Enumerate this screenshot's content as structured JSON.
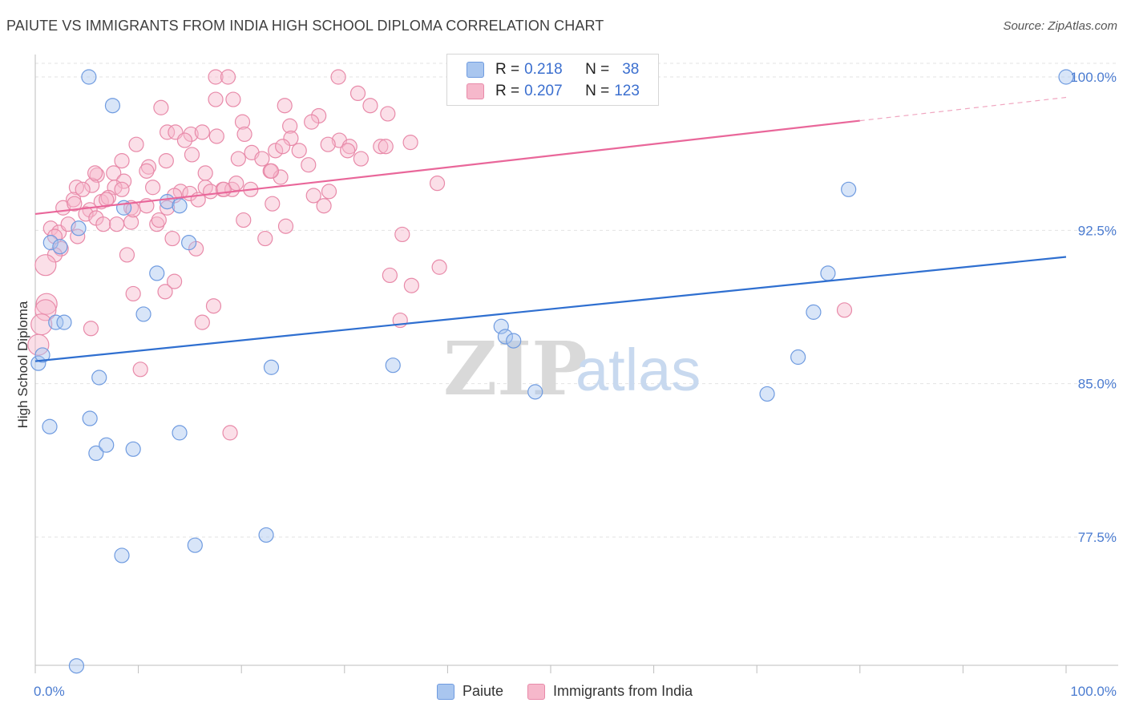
{
  "title": "PAIUTE VS IMMIGRANTS FROM INDIA HIGH SCHOOL DIPLOMA CORRELATION CHART",
  "source": "Source: ZipAtlas.com",
  "watermark": {
    "zip": "ZIP",
    "atlas": "atlas"
  },
  "legend": {
    "rows": [
      {
        "r_label": "R =",
        "r_value": "0.218",
        "n_label": "N =",
        "n_value": "38",
        "color": "#a9c6ef",
        "border": "#6f9be0"
      },
      {
        "r_label": "R =",
        "r_value": "0.207",
        "n_label": "N =",
        "n_value": "123",
        "color": "#f6b8cb",
        "border": "#e88aa9"
      }
    ]
  },
  "bottom_legend": [
    {
      "label": "Paiute",
      "color": "#a9c6ef",
      "border": "#6f9be0"
    },
    {
      "label": "Immigrants from India",
      "color": "#f6b8cb",
      "border": "#e88aa9"
    }
  ],
  "chart_data": {
    "type": "scatter",
    "title": "PAIUTE VS IMMIGRANTS FROM INDIA HIGH SCHOOL DIPLOMA CORRELATION CHART",
    "xlabel": "",
    "ylabel": "High School Diploma",
    "xlim": [
      0,
      100
    ],
    "ylim": [
      71.5,
      101.2
    ],
    "x_tick_labels": [
      "0.0%",
      "100.0%"
    ],
    "y_ticks": [
      77.5,
      85.0,
      92.5,
      100.0
    ],
    "y_tick_labels": [
      "77.5%",
      "85.0%",
      "92.5%",
      "100.0%"
    ],
    "grid": true,
    "series": [
      {
        "name": "Paiute",
        "color": "#6f9be0",
        "fill": "#a9c6ef",
        "trend": {
          "x0": 0,
          "y0": 86.1,
          "x1": 100,
          "y1": 91.2,
          "dashed_from": null
        },
        "points": [
          [
            5.2,
            100.0
          ],
          [
            7.5,
            98.6
          ],
          [
            100.0,
            100.0
          ],
          [
            0.3,
            86.0
          ],
          [
            0.7,
            86.4
          ],
          [
            2.0,
            88.0
          ],
          [
            2.8,
            88.0
          ],
          [
            1.5,
            91.9
          ],
          [
            2.4,
            91.7
          ],
          [
            4.2,
            92.6
          ],
          [
            8.6,
            93.6
          ],
          [
            12.8,
            93.9
          ],
          [
            14.0,
            93.7
          ],
          [
            14.9,
            91.9
          ],
          [
            11.8,
            90.4
          ],
          [
            10.5,
            88.4
          ],
          [
            6.2,
            85.3
          ],
          [
            22.9,
            85.8
          ],
          [
            34.7,
            85.9
          ],
          [
            1.4,
            82.9
          ],
          [
            5.3,
            83.3
          ],
          [
            5.9,
            81.6
          ],
          [
            6.9,
            82.0
          ],
          [
            9.5,
            81.8
          ],
          [
            14.0,
            82.6
          ],
          [
            8.4,
            76.6
          ],
          [
            15.5,
            77.1
          ],
          [
            22.4,
            77.6
          ],
          [
            4.0,
            71.2
          ],
          [
            45.2,
            87.8
          ],
          [
            45.6,
            87.3
          ],
          [
            46.4,
            87.1
          ],
          [
            48.5,
            84.6
          ],
          [
            71.0,
            84.5
          ],
          [
            74.0,
            86.3
          ],
          [
            75.5,
            88.5
          ],
          [
            76.9,
            90.4
          ],
          [
            78.9,
            94.5
          ]
        ]
      },
      {
        "name": "Immigrants from India",
        "color": "#e88aa9",
        "fill": "#f6b8cb",
        "trend": {
          "x0": 0,
          "y0": 93.3,
          "x1": 100,
          "y1": 99.0,
          "dashed_from": 80
        },
        "points": [
          [
            17.5,
            100.0
          ],
          [
            18.7,
            100.0
          ],
          [
            29.4,
            100.0
          ],
          [
            17.5,
            98.9
          ],
          [
            19.2,
            98.9
          ],
          [
            24.2,
            98.6
          ],
          [
            31.3,
            99.2
          ],
          [
            32.5,
            98.6
          ],
          [
            34.2,
            98.2
          ],
          [
            27.5,
            98.1
          ],
          [
            12.2,
            98.5
          ],
          [
            20.1,
            97.8
          ],
          [
            24.7,
            97.6
          ],
          [
            29.5,
            96.9
          ],
          [
            30.5,
            96.6
          ],
          [
            33.5,
            96.6
          ],
          [
            36.4,
            96.8
          ],
          [
            12.8,
            97.3
          ],
          [
            13.6,
            97.3
          ],
          [
            15.1,
            97.2
          ],
          [
            16.2,
            97.3
          ],
          [
            17.6,
            97.1
          ],
          [
            20.3,
            97.2
          ],
          [
            24.8,
            97.0
          ],
          [
            9.8,
            96.7
          ],
          [
            14.5,
            96.9
          ],
          [
            15.2,
            96.2
          ],
          [
            21.0,
            96.3
          ],
          [
            22.0,
            96.0
          ],
          [
            23.3,
            96.4
          ],
          [
            24.0,
            96.6
          ],
          [
            8.4,
            95.9
          ],
          [
            11.0,
            95.6
          ],
          [
            12.7,
            95.9
          ],
          [
            16.5,
            95.3
          ],
          [
            19.7,
            96.0
          ],
          [
            22.8,
            95.4
          ],
          [
            23.8,
            95.1
          ],
          [
            7.6,
            95.3
          ],
          [
            10.8,
            95.4
          ],
          [
            6.0,
            95.2
          ],
          [
            8.6,
            94.9
          ],
          [
            11.4,
            94.6
          ],
          [
            14.1,
            94.4
          ],
          [
            16.5,
            94.6
          ],
          [
            18.2,
            94.5
          ],
          [
            19.1,
            94.5
          ],
          [
            4.0,
            94.6
          ],
          [
            5.5,
            94.7
          ],
          [
            7.7,
            94.6
          ],
          [
            8.4,
            94.5
          ],
          [
            13.5,
            94.2
          ],
          [
            15.0,
            94.3
          ],
          [
            27.0,
            94.2
          ],
          [
            28.5,
            94.4
          ],
          [
            2.7,
            93.6
          ],
          [
            3.7,
            94.0
          ],
          [
            5.3,
            93.5
          ],
          [
            6.4,
            93.9
          ],
          [
            7.1,
            94.1
          ],
          [
            9.3,
            93.6
          ],
          [
            10.8,
            93.7
          ],
          [
            12.8,
            93.6
          ],
          [
            17.0,
            94.4
          ],
          [
            18.3,
            94.5
          ],
          [
            3.8,
            93.8
          ],
          [
            4.9,
            93.3
          ],
          [
            5.9,
            93.1
          ],
          [
            6.6,
            92.8
          ],
          [
            7.9,
            92.8
          ],
          [
            9.3,
            92.9
          ],
          [
            11.8,
            92.8
          ],
          [
            20.2,
            93.0
          ],
          [
            24.3,
            92.7
          ],
          [
            28.0,
            93.7
          ],
          [
            1.5,
            92.6
          ],
          [
            2.3,
            92.4
          ],
          [
            3.2,
            92.8
          ],
          [
            4.1,
            92.2
          ],
          [
            1.9,
            92.2
          ],
          [
            2.5,
            91.6
          ],
          [
            1.9,
            91.3
          ],
          [
            8.9,
            91.3
          ],
          [
            13.3,
            92.1
          ],
          [
            15.6,
            91.6
          ],
          [
            22.3,
            92.1
          ],
          [
            35.6,
            92.3
          ],
          [
            39.2,
            90.7
          ],
          [
            34.4,
            90.3
          ],
          [
            36.5,
            89.8
          ],
          [
            9.5,
            89.4
          ],
          [
            12.6,
            89.5
          ],
          [
            13.5,
            90.0
          ],
          [
            1.0,
            90.8
          ],
          [
            1.1,
            88.9
          ],
          [
            1.0,
            88.6
          ],
          [
            0.6,
            87.9
          ],
          [
            0.3,
            86.9
          ],
          [
            5.4,
            87.7
          ],
          [
            17.3,
            88.8
          ],
          [
            16.2,
            88.0
          ],
          [
            35.4,
            88.1
          ],
          [
            78.5,
            88.6
          ],
          [
            10.2,
            85.7
          ],
          [
            18.9,
            82.6
          ],
          [
            39.0,
            94.8
          ],
          [
            28.4,
            96.7
          ],
          [
            34.0,
            96.6
          ],
          [
            26.5,
            95.7
          ],
          [
            20.9,
            94.5
          ],
          [
            22.9,
            95.4
          ],
          [
            25.6,
            96.4
          ],
          [
            26.8,
            97.8
          ],
          [
            30.3,
            96.4
          ],
          [
            31.6,
            96.0
          ],
          [
            4.6,
            94.5
          ],
          [
            5.8,
            95.3
          ],
          [
            6.9,
            94.0
          ],
          [
            9.5,
            93.5
          ],
          [
            12.0,
            93.0
          ],
          [
            15.8,
            94.0
          ],
          [
            19.5,
            94.8
          ],
          [
            23.0,
            93.8
          ]
        ]
      }
    ]
  }
}
